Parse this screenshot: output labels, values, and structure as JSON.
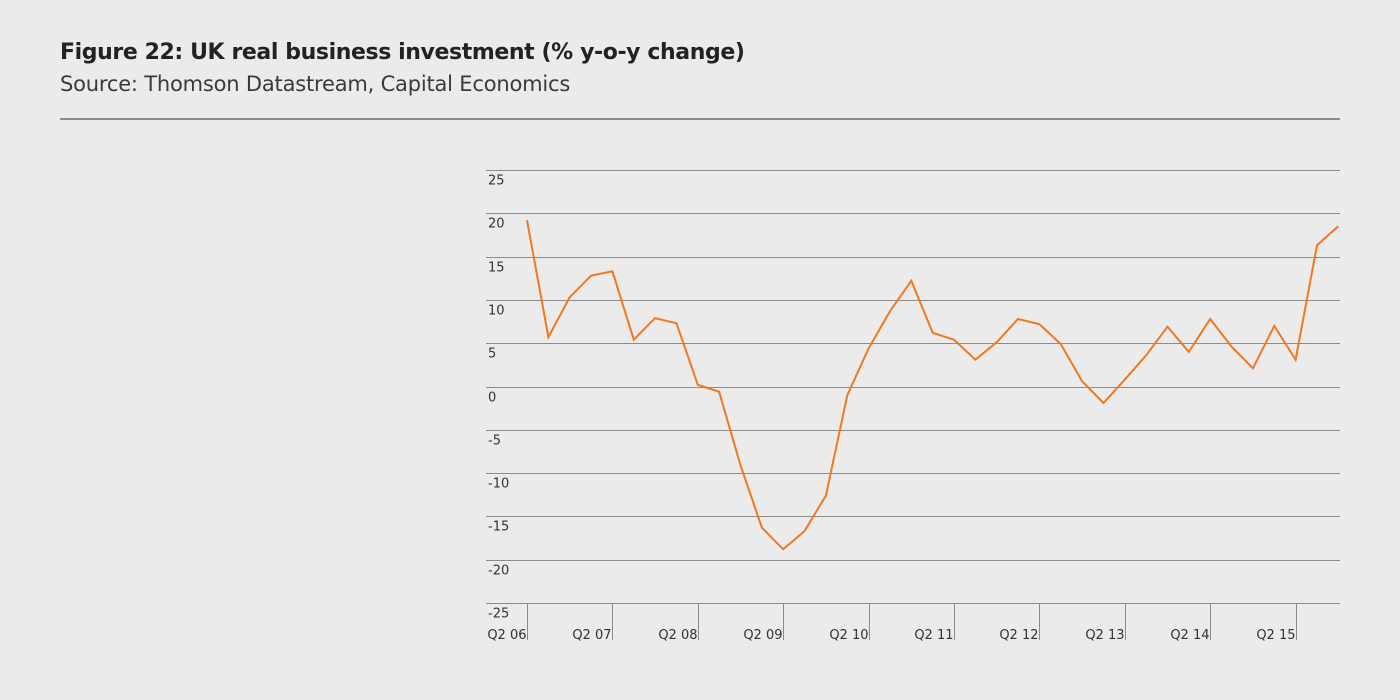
{
  "header": {
    "title": "Figure 22: UK real business investment (% y-o-y change)",
    "subtitle": "Source: Thomson Datastream, Capital Economics"
  },
  "colors": {
    "background": "#ebebeb",
    "line": "#f07820",
    "grid": "#8c8c8c",
    "text": "#333333"
  },
  "chart_data": {
    "type": "line",
    "title": "Figure 22: UK real business investment (% y-o-y change)",
    "subtitle": "Source: Thomson Datastream, Capital Economics",
    "xlabel": "",
    "ylabel": "",
    "ylim": [
      -25,
      25
    ],
    "yticks": [
      25,
      20,
      15,
      10,
      5,
      0,
      -5,
      -10,
      -15,
      -20,
      -25
    ],
    "grid": true,
    "x_tick_labels": [
      "Q2 06",
      "Q2 07",
      "Q2 08",
      "Q2 09",
      "Q2 10",
      "Q2 11",
      "Q2 12",
      "Q2 13",
      "Q2 14",
      "Q2 15"
    ],
    "x": [
      "Q2 06",
      "Q3 06",
      "Q4 06",
      "Q1 07",
      "Q2 07",
      "Q3 07",
      "Q4 07",
      "Q1 08",
      "Q2 08",
      "Q3 08",
      "Q4 08",
      "Q1 09",
      "Q2 09",
      "Q3 09",
      "Q4 09",
      "Q1 10",
      "Q2 10",
      "Q3 10",
      "Q4 10",
      "Q1 11",
      "Q2 11",
      "Q3 11",
      "Q4 11",
      "Q1 12",
      "Q2 12",
      "Q3 12",
      "Q4 12",
      "Q1 13",
      "Q2 13",
      "Q3 13",
      "Q4 13",
      "Q1 14",
      "Q2 14",
      "Q3 14",
      "Q4 14",
      "Q1 15",
      "Q2 15",
      "Q3 15",
      "Q4 15"
    ],
    "series": [
      {
        "values": [
          19.2,
          5.7,
          10.3,
          12.8,
          13.3,
          5.4,
          7.9,
          7.3,
          0.2,
          -0.6,
          -9.1,
          -16.3,
          -18.8,
          -16.7,
          -12.6,
          -1.0,
          4.4,
          8.7,
          12.2,
          6.2,
          5.4,
          3.1,
          5.1,
          7.8,
          7.2,
          4.9,
          0.6,
          -1.9,
          0.8,
          3.6,
          6.9,
          4.0,
          7.8,
          4.6,
          2.1,
          7.0,
          3.1,
          16.3,
          18.5
        ]
      }
    ]
  }
}
